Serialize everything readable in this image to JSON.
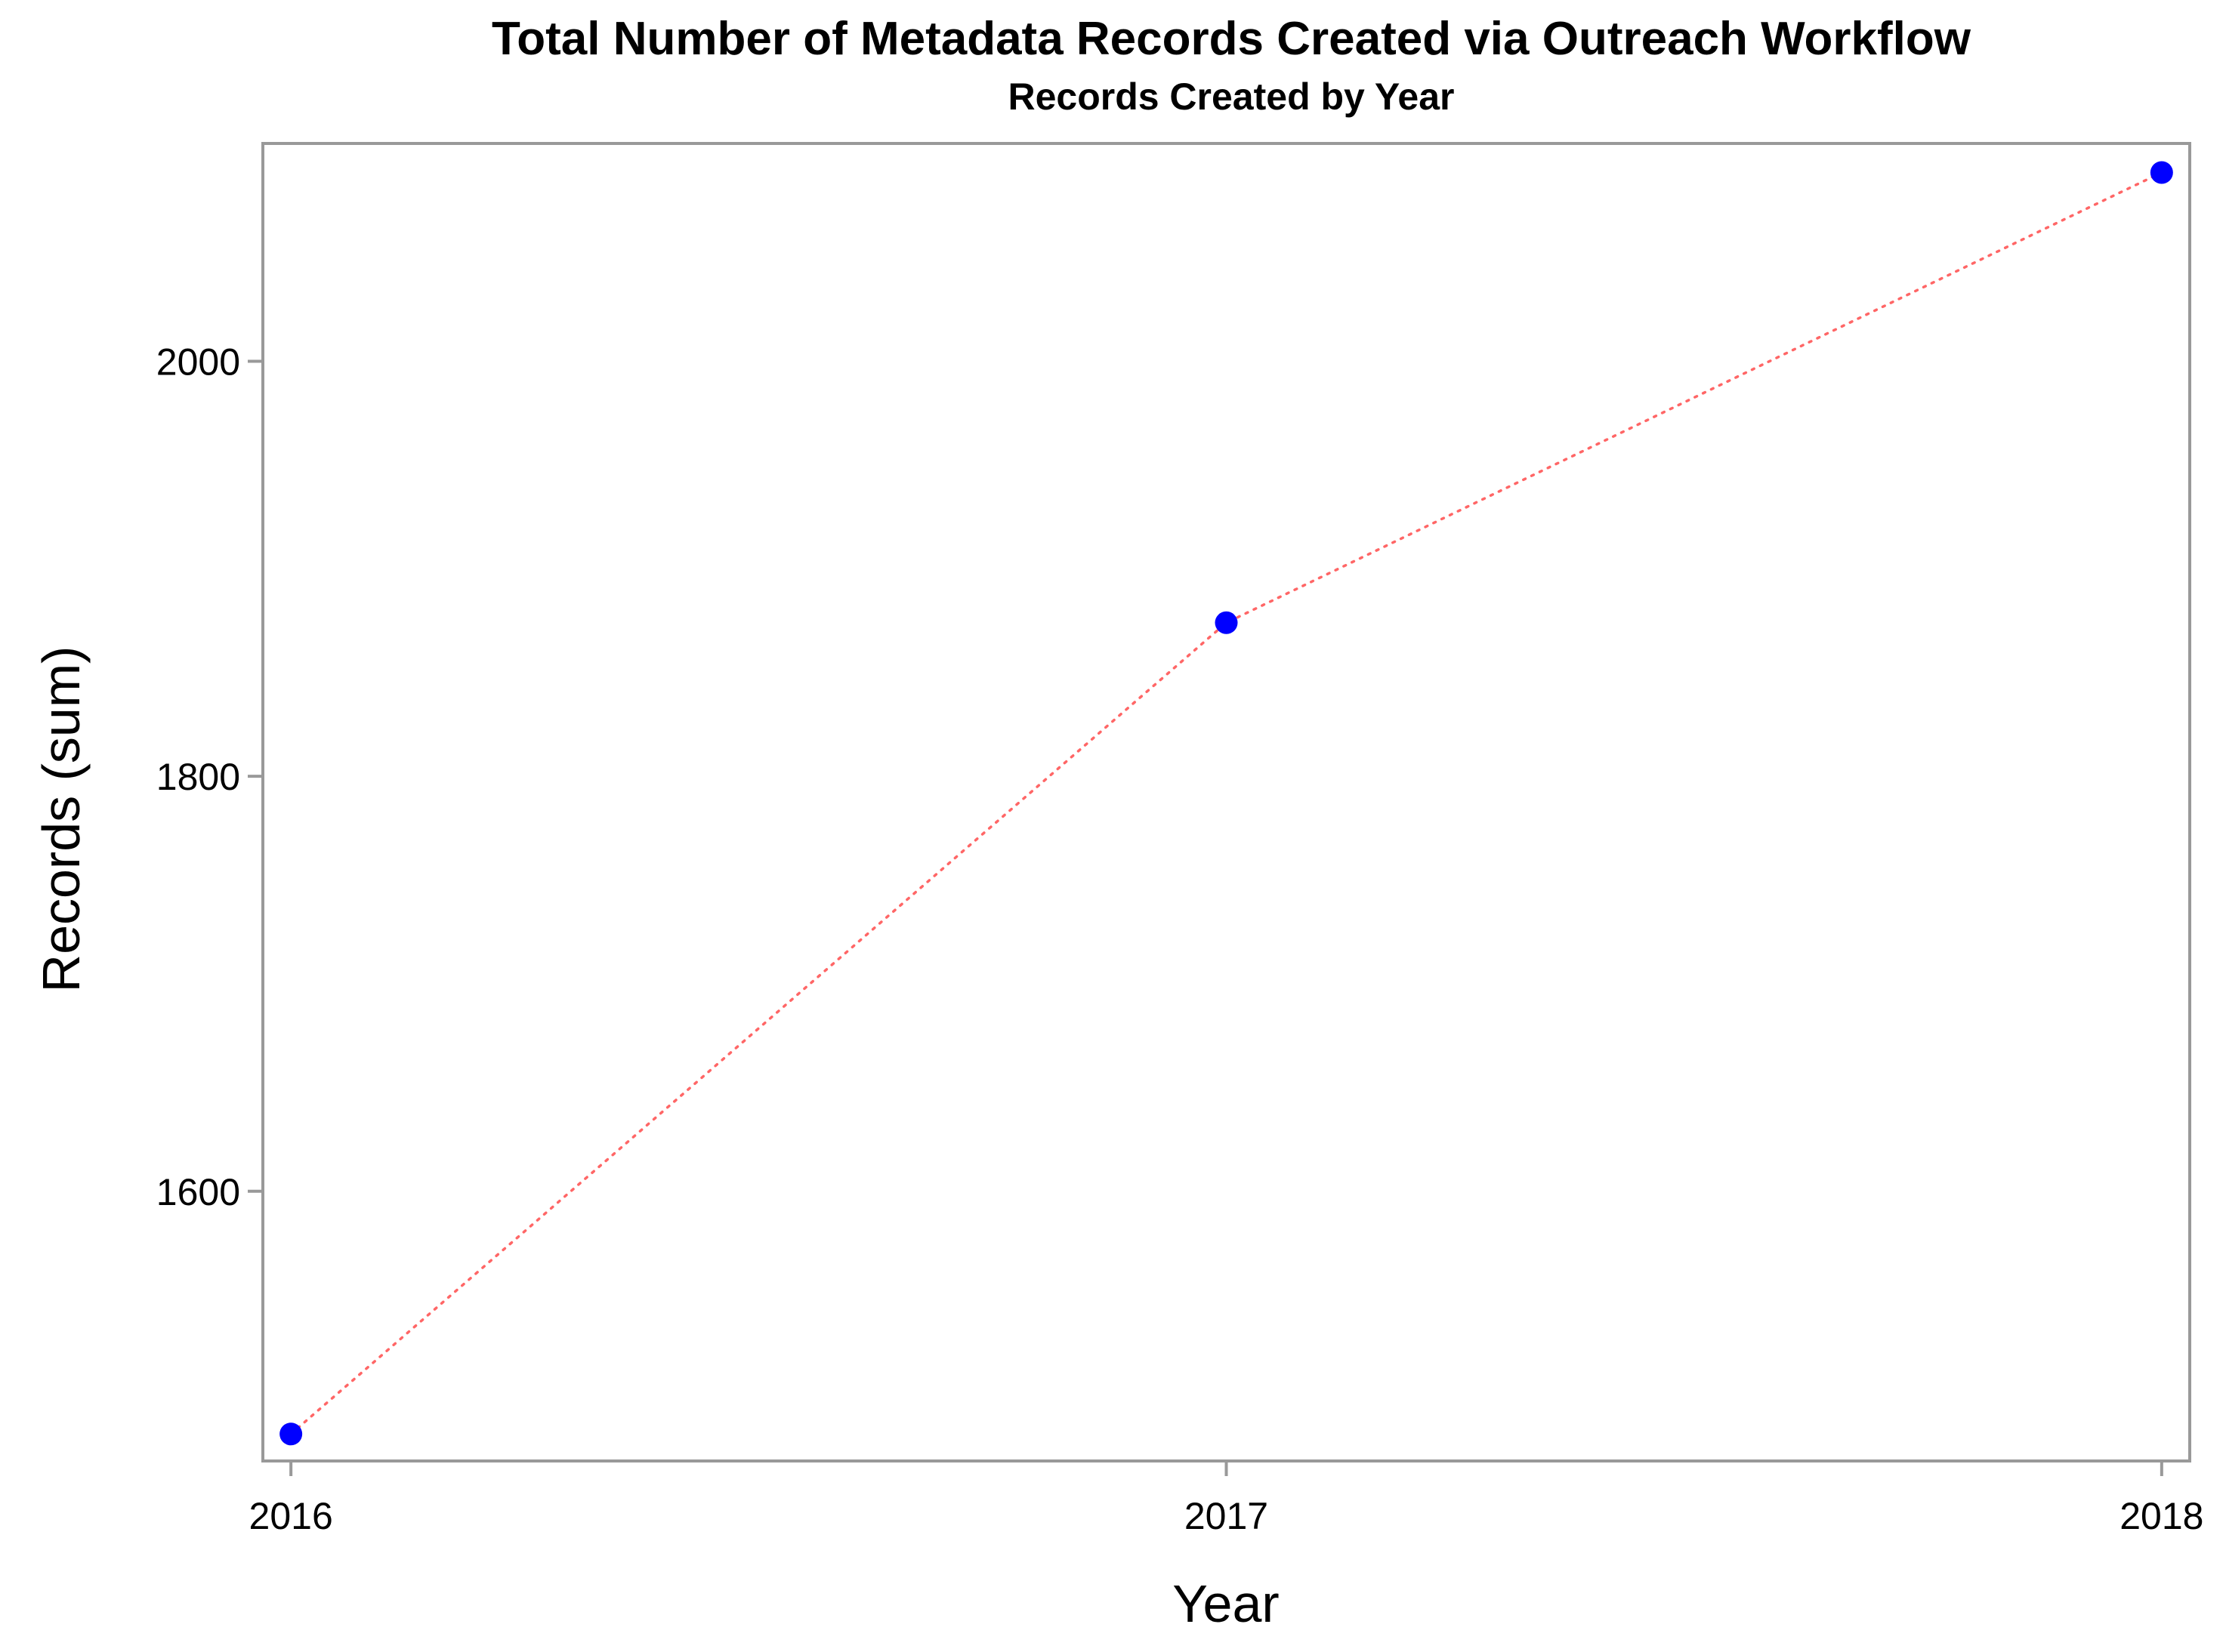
{
  "chart_data": {
    "type": "line",
    "title": "Total Number of Metadata Records Created via Outreach Workflow",
    "subtitle": "Records Created by Year",
    "xlabel": "Year",
    "ylabel": "Records (sum)",
    "x": [
      2016,
      2017,
      2018
    ],
    "y": [
      1483,
      1874,
      2091
    ],
    "x_ticks": [
      "2016",
      "2017",
      "2018"
    ],
    "y_ticks": [
      1600,
      1800,
      2000
    ],
    "xlim": [
      2015.97,
      2018.03
    ],
    "ylim": [
      1470,
      2105
    ],
    "grid": false,
    "legend": "none",
    "colors": {
      "marker": "#0000ff",
      "line": "#ff6666",
      "frame": "#999999"
    }
  }
}
